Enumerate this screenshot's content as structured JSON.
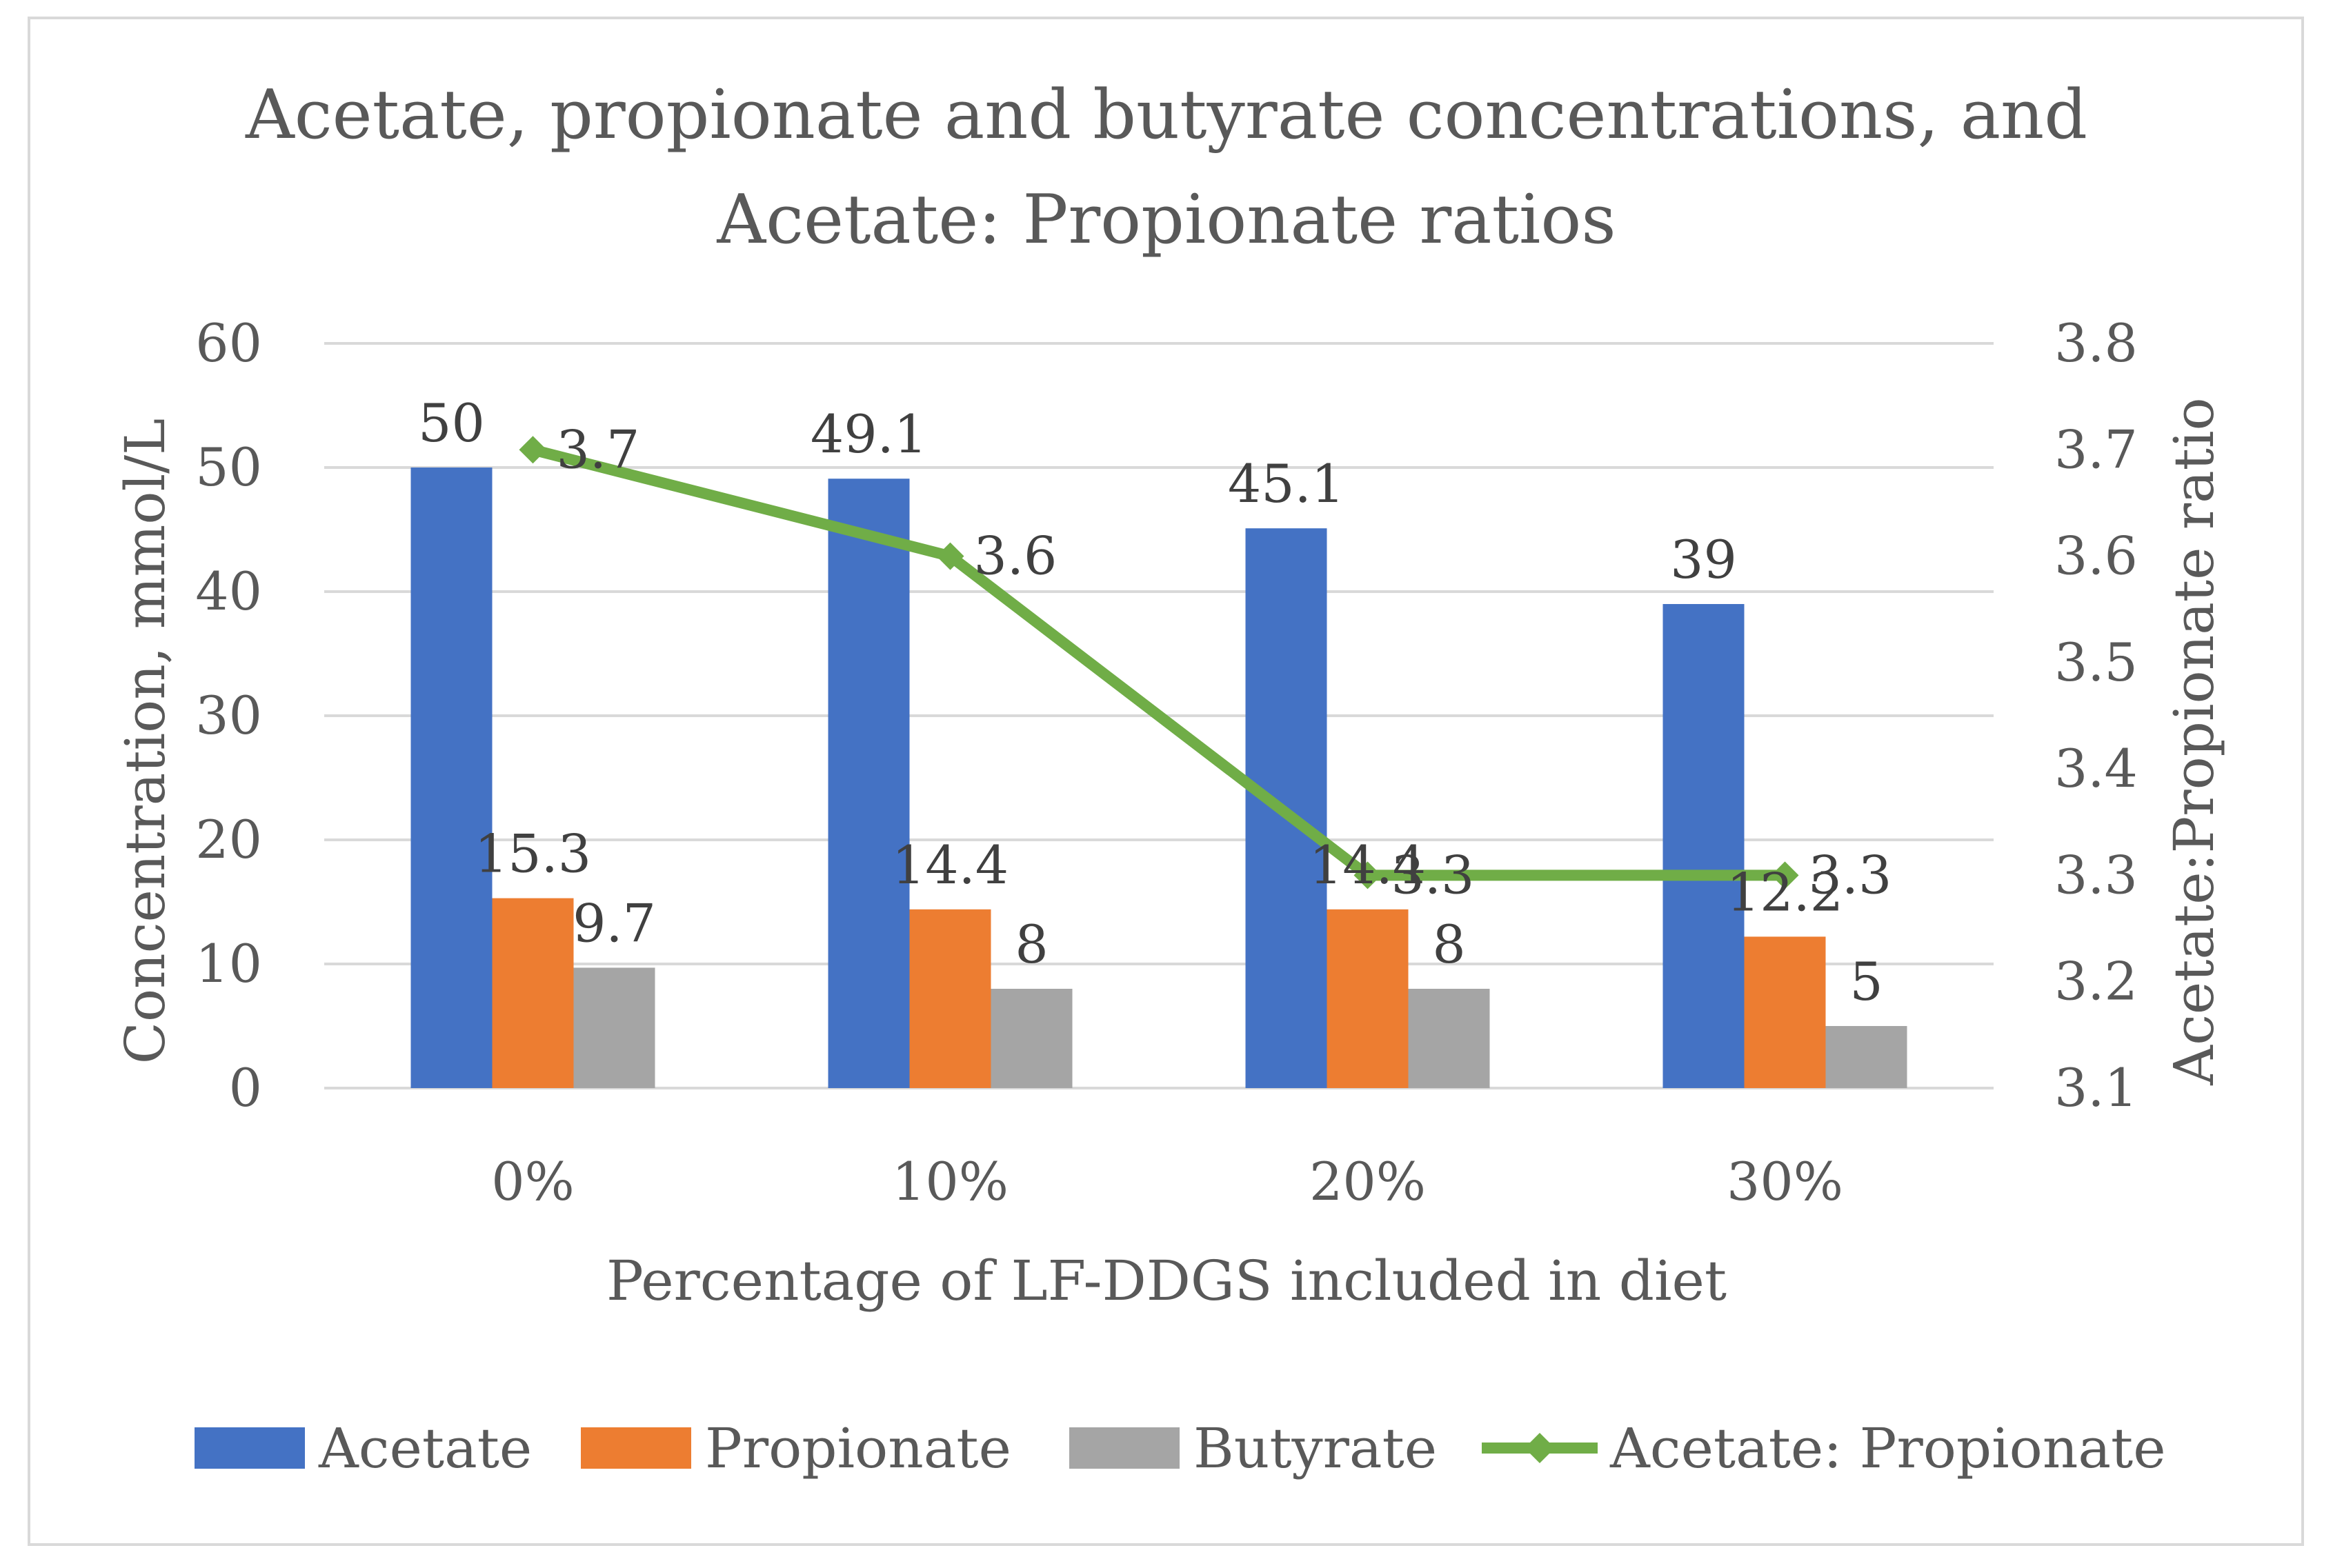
{
  "chart_data": {
    "type": "bar",
    "title_lines": [
      "Acetate, propionate and butyrate concentrations, and",
      "Acetate: Propionate ratios"
    ],
    "xlabel": "Percentage of LF-DDGS included in diet",
    "ylabel": "Concentration, mmol/L",
    "y2label": "Acetate:Propionate ratio",
    "categories": [
      "0%",
      "10%",
      "20%",
      "30%"
    ],
    "ylim": [
      0,
      60
    ],
    "yticks": [
      "0",
      "10",
      "20",
      "30",
      "40",
      "50",
      "60"
    ],
    "y2lim": [
      3.1,
      3.8
    ],
    "y2ticks": [
      "3.1",
      "3.2",
      "3.3",
      "3.4",
      "3.5",
      "3.6",
      "3.7",
      "3.8"
    ],
    "grid": true,
    "legend_position": "bottom",
    "series": [
      {
        "name": "Acetate",
        "kind": "bar",
        "axis": "left",
        "color": "#4472c4",
        "values": [
          50,
          49.1,
          45.1,
          39
        ],
        "labels": [
          "50",
          "49.1",
          "45.1",
          "39"
        ]
      },
      {
        "name": "Propionate",
        "kind": "bar",
        "axis": "left",
        "color": "#ed7d31",
        "values": [
          15.3,
          14.4,
          14.4,
          12.2
        ],
        "labels": [
          "15.3",
          "14.4",
          "14.4",
          "12.2"
        ]
      },
      {
        "name": "Butyrate",
        "kind": "bar",
        "axis": "left",
        "color": "#a5a5a5",
        "values": [
          9.7,
          8,
          8,
          5
        ],
        "labels": [
          "9.7",
          "8",
          "8",
          "5"
        ]
      },
      {
        "name": "Acetate: Propionate",
        "kind": "line",
        "axis": "right",
        "color": "#70ad47",
        "values": [
          3.7,
          3.6,
          3.3,
          3.3
        ],
        "labels": [
          "3.7",
          "3.6",
          "3.3",
          "3.3"
        ]
      }
    ]
  }
}
